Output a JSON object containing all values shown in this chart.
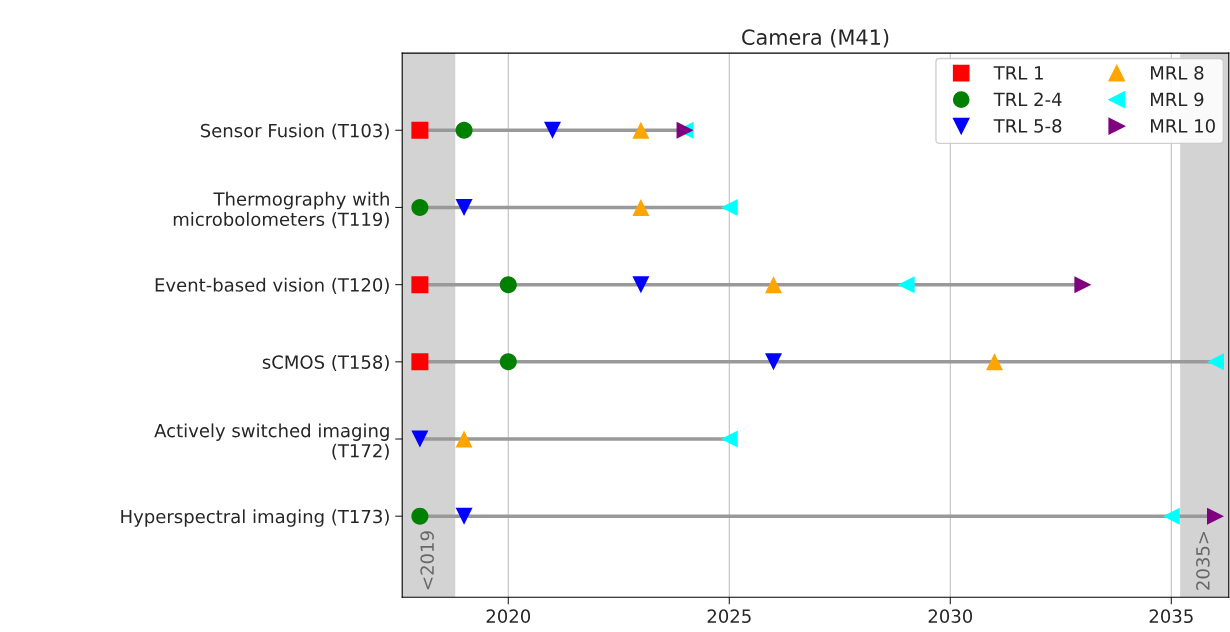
{
  "chart_data": {
    "type": "scatter",
    "orientation": "horizontal",
    "title": "Camera (M41)",
    "categories": [
      "Sensor Fusion (T103)",
      "Thermography with\nmicrobolometers (T119)",
      "Event-based vision (T120)",
      "sCMOS (T158)",
      "Actively switched imaging\n(T172)",
      "Hyperspectral imaging (T173)"
    ],
    "series": [
      {
        "name": "TRL 1",
        "color": "#ff0000",
        "marker": "square",
        "values": [
          2018,
          null,
          2018,
          2018,
          null,
          null
        ]
      },
      {
        "name": "TRL 2-4",
        "color": "#008000",
        "marker": "circle",
        "values": [
          2019,
          2018,
          2020,
          2020,
          null,
          2018
        ]
      },
      {
        "name": "TRL 5-8",
        "color": "#0000ff",
        "marker": "triangle_down",
        "values": [
          2021,
          2019,
          2023,
          2026,
          2018,
          2019
        ]
      },
      {
        "name": "MRL 8",
        "color": "#ffa500",
        "marker": "triangle",
        "values": [
          2023,
          2023,
          2026,
          2031,
          2019,
          null
        ]
      },
      {
        "name": "MRL 9",
        "color": "#00ffff",
        "marker": "triangle_left",
        "values": [
          2024,
          2025,
          2029,
          2036,
          2025,
          2035
        ]
      },
      {
        "name": "MRL 10",
        "color": "#800080",
        "marker": "triangle_right",
        "values": [
          2024,
          null,
          2033,
          null,
          null,
          2036
        ]
      }
    ],
    "xlim": [
      2017.6,
      2036.3
    ],
    "xticks": [
      2020,
      2025,
      2030,
      2035
    ],
    "grid": "x",
    "legend": "top right",
    "bands": [
      {
        "axis": "x",
        "from": 2017.6,
        "to": 2018.8,
        "label": "<2019",
        "color": "#d3d3d3"
      },
      {
        "axis": "x",
        "from": 2035.2,
        "to": 2036.3,
        "label": "2035>",
        "color": "#d3d3d3"
      }
    ]
  }
}
